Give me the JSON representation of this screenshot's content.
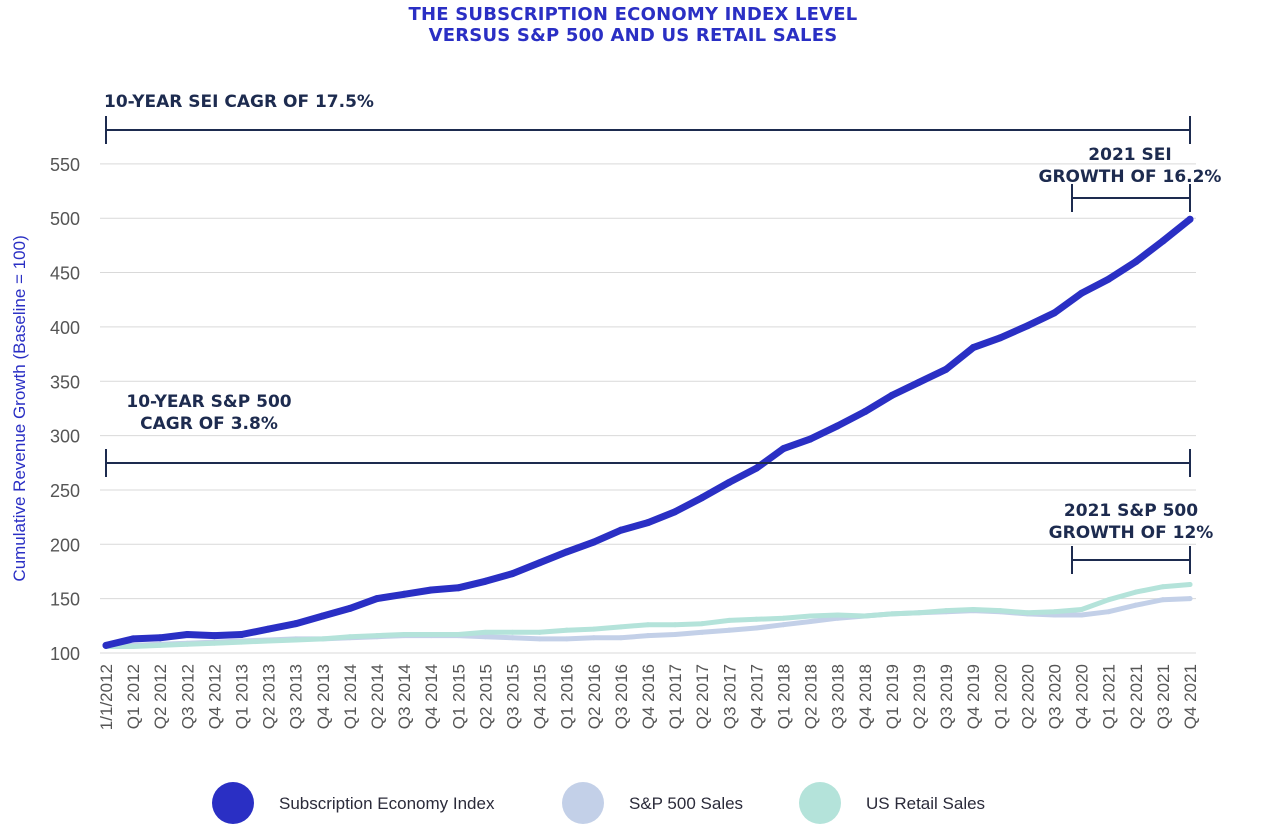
{
  "title_lines": [
    "THE SUBSCRIPTION ECONOMY INDEX LEVEL",
    "VERSUS S&P 500 AND US RETAIL SALES"
  ],
  "annotations": {
    "sei_cagr": [
      "10-YEAR SEI CAGR OF 17.5%"
    ],
    "sp_cagr": [
      "10-YEAR S&P 500",
      "CAGR OF 3.8%"
    ],
    "sei_2021": [
      "2021 SEI",
      "GROWTH OF 16.2%"
    ],
    "sp_2021": [
      "2021 S&P 500",
      "GROWTH OF 12%"
    ]
  },
  "colors": {
    "sei": "#2a2fc4",
    "sp500": "#c3d0e8",
    "retail": "#b4e3da",
    "annotation": "#1d2b4f",
    "ylabel": "#2a2fc4",
    "grid": "#d9d9d9"
  },
  "chart_data": {
    "type": "line",
    "ylabel": "Cumulative Revenue Growth (Baseline = 100)",
    "xlabel": "",
    "ylim": [
      100,
      550
    ],
    "yticks": [
      100,
      150,
      200,
      250,
      300,
      350,
      400,
      450,
      500,
      550
    ],
    "grid": true,
    "legend_position": "bottom",
    "categories": [
      "1/1/2012",
      "Q1 2012",
      "Q2 2012",
      "Q3 2012",
      "Q4 2012",
      "Q1 2013",
      "Q2 2013",
      "Q3 2013",
      "Q4 2013",
      "Q1 2014",
      "Q2 2014",
      "Q3 2014",
      "Q4 2014",
      "Q1 2015",
      "Q2 2015",
      "Q3 2015",
      "Q4 2015",
      "Q1 2016",
      "Q2 2016",
      "Q3 2016",
      "Q4 2016",
      "Q1 2017",
      "Q2 2017",
      "Q3 2017",
      "Q4 2017",
      "Q1 2018",
      "Q2 2018",
      "Q3 2018",
      "Q4 2018",
      "Q1 2019",
      "Q2 2019",
      "Q3 2019",
      "Q4 2019",
      "Q1 2020",
      "Q2 2020",
      "Q3 2020",
      "Q4 2020",
      "Q1 2021",
      "Q2 2021",
      "Q3 2021",
      "Q4 2021"
    ],
    "series": [
      {
        "name": "Subscription Economy Index",
        "color_key": "sei",
        "values": [
          107,
          113,
          114,
          117,
          116,
          117,
          122,
          127,
          134,
          141,
          150,
          154,
          158,
          160,
          166,
          173,
          183,
          193,
          202,
          213,
          220,
          230,
          243,
          257,
          270,
          288,
          297,
          309,
          322,
          337,
          349,
          361,
          381,
          390,
          401,
          413,
          431,
          444,
          460,
          479,
          499
        ]
      },
      {
        "name": "S&P 500 Sales",
        "color_key": "sp500",
        "values": [
          106,
          107,
          108,
          109,
          110,
          111,
          112,
          113,
          113,
          114,
          115,
          116,
          116,
          116,
          115,
          114,
          113,
          113,
          114,
          114,
          116,
          117,
          119,
          121,
          123,
          126,
          129,
          132,
          134,
          136,
          137,
          138,
          139,
          138,
          136,
          135,
          135,
          138,
          144,
          149,
          150
        ]
      },
      {
        "name": "US Retail Sales",
        "color_key": "retail",
        "values": [
          106,
          106,
          107,
          108,
          109,
          110,
          111,
          112,
          113,
          115,
          116,
          117,
          117,
          117,
          119,
          119,
          119,
          121,
          122,
          124,
          126,
          126,
          127,
          130,
          131,
          132,
          134,
          135,
          134,
          136,
          137,
          139,
          140,
          139,
          137,
          138,
          140,
          149,
          156,
          161,
          163
        ]
      }
    ]
  }
}
